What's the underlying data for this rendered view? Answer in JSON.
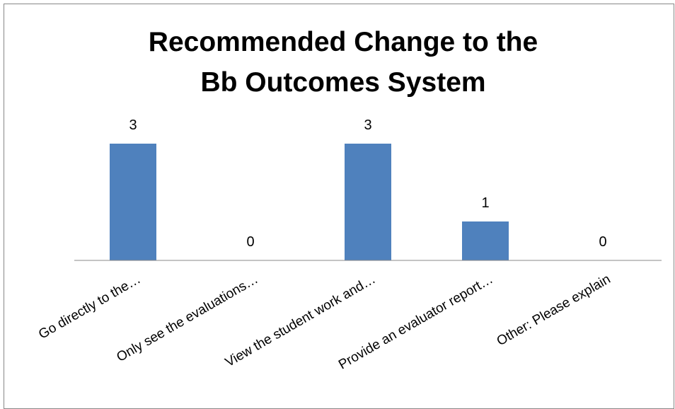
{
  "chart_data": {
    "type": "bar",
    "title": [
      "Recommended Change to the",
      "Bb Outcomes System"
    ],
    "categories": [
      "Go directly to the…",
      "Only see the evaluations…",
      "View the student work and…",
      "Provide an evaluator report…",
      "Other: Please explain"
    ],
    "values": [
      3,
      0,
      3,
      1,
      0
    ],
    "color": "#4f81bd",
    "ylim": [
      0,
      3.5
    ]
  }
}
